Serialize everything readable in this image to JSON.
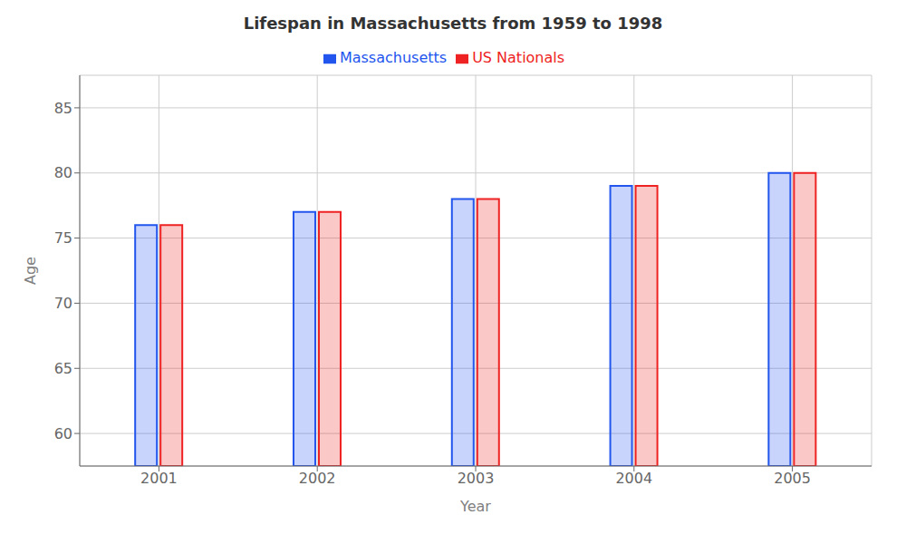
{
  "chart_data": {
    "type": "bar",
    "title": "Lifespan in Massachusetts from 1959 to 1998",
    "x_label": "Year",
    "y_label": "Age",
    "categories": [
      "2001",
      "2002",
      "2003",
      "2004",
      "2005"
    ],
    "series": [
      {
        "name": "Massachusetts",
        "color": "#2255ee",
        "values": [
          76,
          77,
          78,
          79,
          80
        ]
      },
      {
        "name": "US Nationals",
        "color": "#ee2222",
        "values": [
          76,
          77,
          78,
          79,
          80
        ]
      }
    ],
    "ylim": [
      57.5,
      87.5
    ],
    "yticks": [
      60,
      65,
      70,
      75,
      80,
      85
    ],
    "grid": true,
    "legend": "top"
  }
}
